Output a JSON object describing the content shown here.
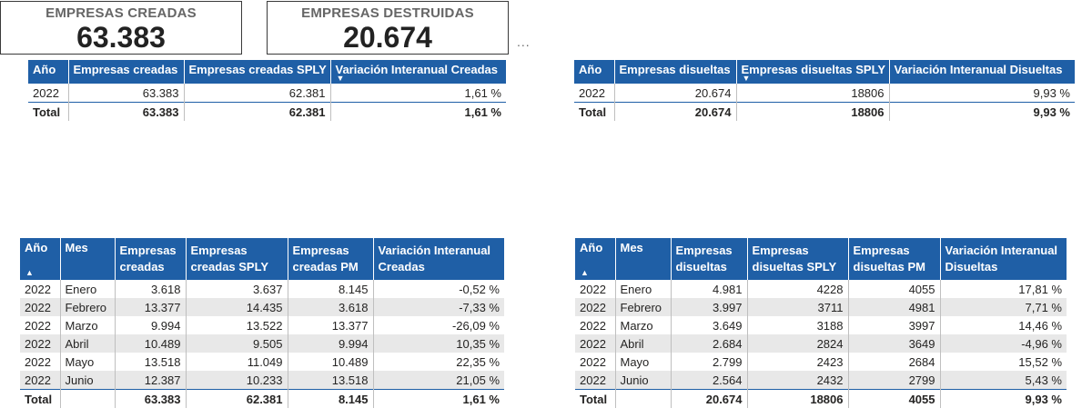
{
  "cards": [
    {
      "title": "EMPRESAS CREADAS",
      "value": "63.383"
    },
    {
      "title": "EMPRESAS DESTRUIDAS",
      "value": "20.674"
    }
  ],
  "more_icon": "...",
  "sort_icons": {
    "down": "▼",
    "up": "▲"
  },
  "t1": {
    "headers": [
      "Año",
      "Empresas creadas",
      "Empresas creadas SPLY",
      "Variación Interanual Creadas"
    ],
    "rows": [
      [
        "2022",
        "63.383",
        "62.381",
        "1,61 %"
      ]
    ],
    "total": [
      "Total",
      "63.383",
      "62.381",
      "1,61 %"
    ]
  },
  "t2": {
    "headers": [
      "Año",
      "Empresas disueltas",
      "Empresas disueltas SPLY",
      "Variación Interanual Disueltas"
    ],
    "rows": [
      [
        "2022",
        "20.674",
        "18806",
        "9,93 %"
      ]
    ],
    "total": [
      "Total",
      "20.674",
      "18806",
      "9,93 %"
    ]
  },
  "t3": {
    "headers": [
      "Año",
      "Mes",
      "Empresas creadas",
      "Empresas creadas SPLY",
      "Empresas creadas PM",
      "Variación Interanual Creadas"
    ],
    "rows": [
      [
        "2022",
        "Enero",
        "3.618",
        "3.637",
        "8.145",
        "-0,52 %"
      ],
      [
        "2022",
        "Febrero",
        "13.377",
        "14.435",
        "3.618",
        "-7,33 %"
      ],
      [
        "2022",
        "Marzo",
        "9.994",
        "13.522",
        "13.377",
        "-26,09 %"
      ],
      [
        "2022",
        "Abril",
        "10.489",
        "9.505",
        "9.994",
        "10,35 %"
      ],
      [
        "2022",
        "Mayo",
        "13.518",
        "11.049",
        "10.489",
        "22,35 %"
      ],
      [
        "2022",
        "Junio",
        "12.387",
        "10.233",
        "13.518",
        "21,05 %"
      ]
    ],
    "total": [
      "Total",
      "",
      "63.383",
      "62.381",
      "8.145",
      "1,61 %"
    ]
  },
  "t4": {
    "headers": [
      "Año",
      "Mes",
      "Empresas disueltas",
      "Empresas disueltas SPLY",
      "Empresas disueltas PM",
      "Variación Interanual Disueltas"
    ],
    "rows": [
      [
        "2022",
        "Enero",
        "4.981",
        "4228",
        "4055",
        "17,81 %"
      ],
      [
        "2022",
        "Febrero",
        "3.997",
        "3711",
        "4981",
        "7,71 %"
      ],
      [
        "2022",
        "Marzo",
        "3.649",
        "3188",
        "3997",
        "14,46 %"
      ],
      [
        "2022",
        "Abril",
        "2.684",
        "2824",
        "3649",
        "-4,96 %"
      ],
      [
        "2022",
        "Mayo",
        "2.799",
        "2423",
        "2684",
        "15,52 %"
      ],
      [
        "2022",
        "Junio",
        "2.564",
        "2432",
        "2799",
        "5,43 %"
      ]
    ],
    "total": [
      "Total",
      "",
      "20.674",
      "18806",
      "4055",
      "9,93 %"
    ]
  },
  "colors": {
    "header_bg": "#1f5fa6",
    "header_text": "#ffffff",
    "row_shade": "#e8e8e8",
    "card_border": "#3a3a3a"
  }
}
